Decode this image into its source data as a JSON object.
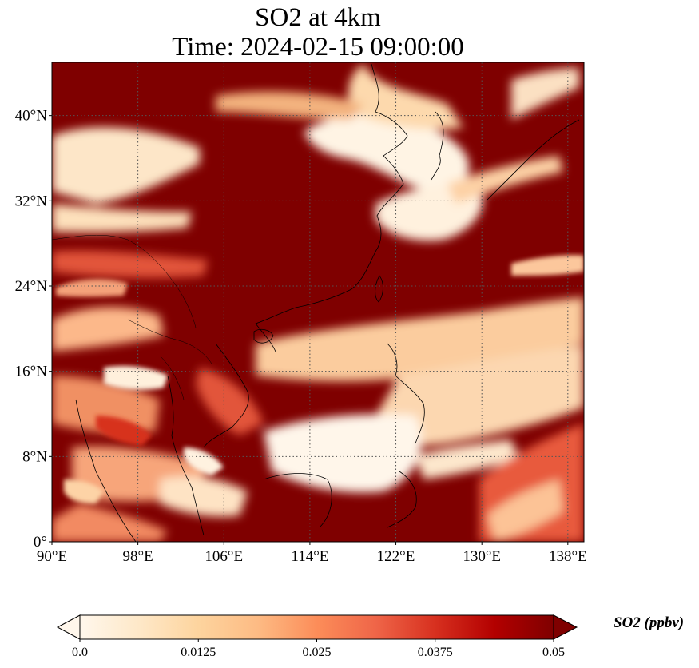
{
  "title": {
    "line1": "SO2 at 4km",
    "line2": "Time: 2024-02-15 09:00:00"
  },
  "map": {
    "projection": "PlateCarree",
    "lon_range": [
      90,
      139.5
    ],
    "lat_range": [
      0,
      45
    ],
    "gridlines": "dotted",
    "xticks": [
      {
        "value": 90,
        "label": "90°E"
      },
      {
        "value": 98,
        "label": "98°E"
      },
      {
        "value": 106,
        "label": "106°E"
      },
      {
        "value": 114,
        "label": "114°E"
      },
      {
        "value": 122,
        "label": "122°E"
      },
      {
        "value": 130,
        "label": "130°E"
      },
      {
        "value": 138,
        "label": "138°E"
      }
    ],
    "yticks": [
      {
        "value": 0,
        "label": "0°"
      },
      {
        "value": 8,
        "label": "8°N"
      },
      {
        "value": 16,
        "label": "16°N"
      },
      {
        "value": 24,
        "label": "24°N"
      },
      {
        "value": 32,
        "label": "32°N"
      },
      {
        "value": 40,
        "label": "40°N"
      }
    ],
    "field_colors": {
      "saturated": "#7f0000",
      "low": "#fff7ec"
    }
  },
  "colorbar": {
    "label": "SO2 (ppbv)",
    "min": 0.0,
    "max": 0.05,
    "extend": "both",
    "colormap": "OrRd",
    "stops": [
      "#fff7ec",
      "#fee8c8",
      "#fdd49e",
      "#fdbb84",
      "#fc8d59",
      "#ef6548",
      "#d7301f",
      "#b30000",
      "#7f0000"
    ],
    "ticks": [
      {
        "value": 0.0,
        "label": "0.0"
      },
      {
        "value": 0.0125,
        "label": "0.0125"
      },
      {
        "value": 0.025,
        "label": "0.025"
      },
      {
        "value": 0.0375,
        "label": "0.0375"
      },
      {
        "value": 0.05,
        "label": "0.05"
      }
    ]
  }
}
